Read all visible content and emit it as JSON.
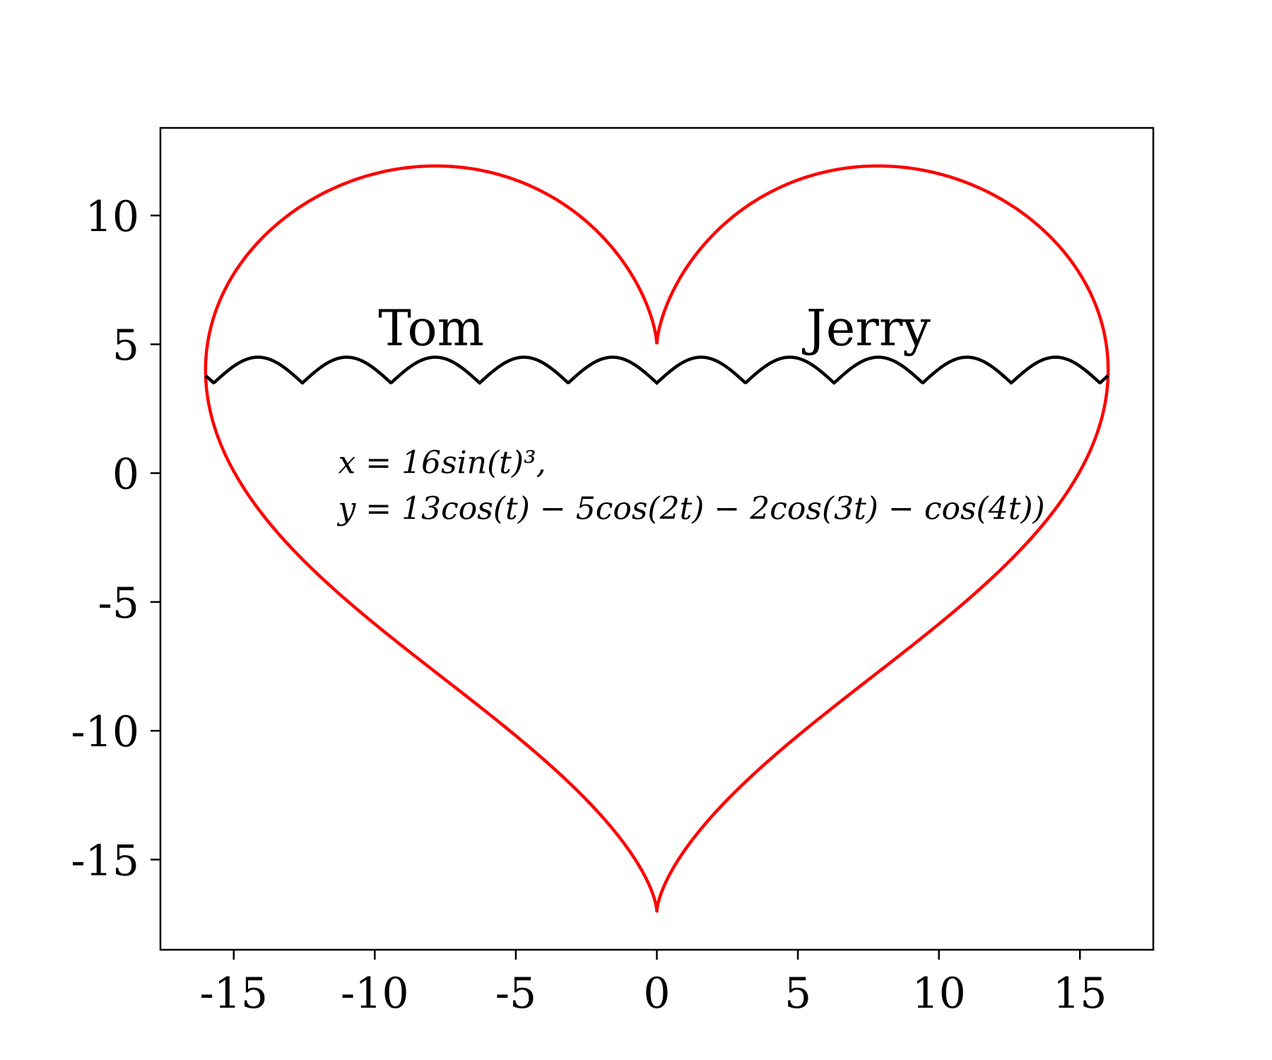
{
  "chart_data": {
    "type": "line",
    "title": "",
    "xlabel": "",
    "ylabel": "",
    "xlim": [
      -17.6,
      17.6
    ],
    "ylim": [
      -18.5,
      13.4
    ],
    "grid": false,
    "legend": "none",
    "x_ticks": [
      {
        "value": -15,
        "label": "-15"
      },
      {
        "value": -10,
        "label": "-10"
      },
      {
        "value": -5,
        "label": "-5"
      },
      {
        "value": 0,
        "label": "0"
      },
      {
        "value": 5,
        "label": "5"
      },
      {
        "value": 10,
        "label": "10"
      },
      {
        "value": 15,
        "label": "15"
      }
    ],
    "y_ticks": [
      {
        "value": -15,
        "label": "-15"
      },
      {
        "value": -10,
        "label": "-10"
      },
      {
        "value": -5,
        "label": "-5"
      },
      {
        "value": 0,
        "label": "0"
      },
      {
        "value": 5,
        "label": "5"
      },
      {
        "value": 10,
        "label": "10"
      }
    ],
    "series": [
      {
        "kind": "heart-curve",
        "color": "#ff0000",
        "x_expr": "16 sin(t)^3",
        "y_expr": "13cos(t) - 5cos(2t) - 2cos(3t) - cos(4t)",
        "t_range": [
          0,
          6.2832
        ]
      },
      {
        "kind": "wave",
        "color": "#000000",
        "y_expr": "|sin(x)| + 3.5",
        "x_range": [
          -16,
          16
        ]
      }
    ],
    "annotations": [
      {
        "text": "Tom",
        "x": -8,
        "y": 5.1
      },
      {
        "text": "Jerry",
        "x": 7.5,
        "y": 5.1
      }
    ],
    "formula_lines": [
      "x = 16sin(t)³,",
      "y = 13cos(t) − 5cos(2t) − 2cos(3t) − cos(4t))"
    ],
    "formula_anchor": {
      "x": -11.3,
      "y": 0
    }
  }
}
